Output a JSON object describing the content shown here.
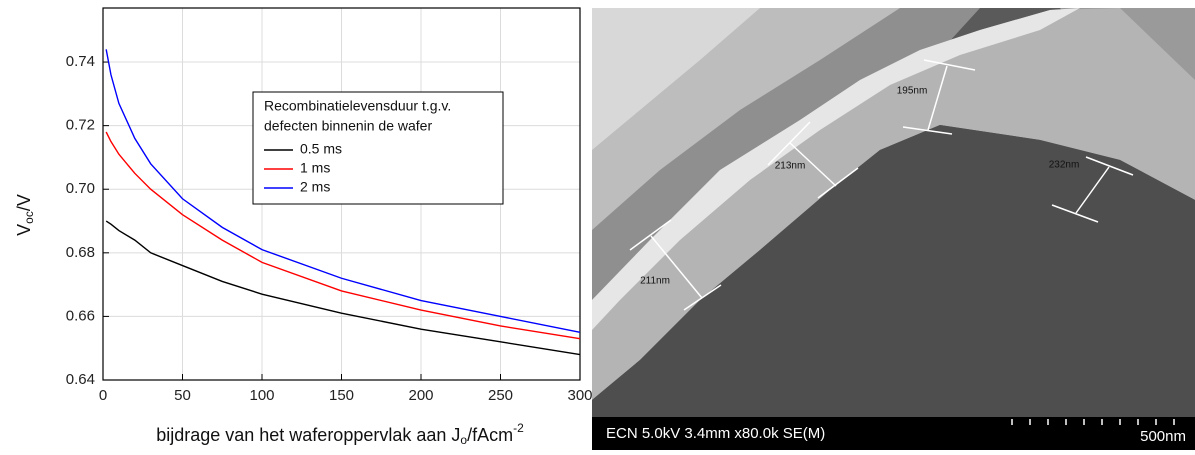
{
  "chart_data": {
    "type": "line",
    "y_label": {
      "main": "V",
      "sub": "oc",
      "rest": "/V"
    },
    "x_label": {
      "main": "bijdrage van het waferoppervlak aan J",
      "sub": "o",
      "rest": "/fAcm",
      "sup": "-2"
    },
    "legend_title": [
      "Recombinatielevensduur t.g.v.",
      "defecten binnenin de wafer"
    ],
    "x": [
      2,
      5,
      10,
      20,
      30,
      50,
      75,
      100,
      150,
      200,
      250,
      300
    ],
    "series": [
      {
        "name": "0.5 ms",
        "color": "#000000",
        "values": [
          0.69,
          0.689,
          0.687,
          0.684,
          0.68,
          0.676,
          0.671,
          0.667,
          0.661,
          0.656,
          0.652,
          0.648
        ]
      },
      {
        "name": "1 ms",
        "color": "#ff0000",
        "values": [
          0.718,
          0.715,
          0.711,
          0.705,
          0.7,
          0.692,
          0.684,
          0.677,
          0.668,
          0.662,
          0.657,
          0.653
        ]
      },
      {
        "name": "2 ms",
        "color": "#0000ff",
        "values": [
          0.744,
          0.736,
          0.727,
          0.716,
          0.708,
          0.697,
          0.688,
          0.681,
          0.672,
          0.665,
          0.66,
          0.655
        ]
      }
    ],
    "xlim": [
      0,
      300
    ],
    "xticks": [
      0,
      50,
      100,
      150,
      200,
      250,
      300
    ],
    "ylim": [
      0.64,
      0.757
    ],
    "yticks": [
      0.64,
      0.66,
      0.68,
      {
        "value": 0.7,
        "label": "0.70"
      },
      0.72,
      0.74
    ],
    "grid": true
  },
  "image": {
    "measurements": [
      "195nm",
      "213nm",
      "232nm",
      "211nm"
    ],
    "info_bar": "ECN 5.0kV 3.4mm x80.0k SE(M)",
    "scale_label": "500nm"
  }
}
